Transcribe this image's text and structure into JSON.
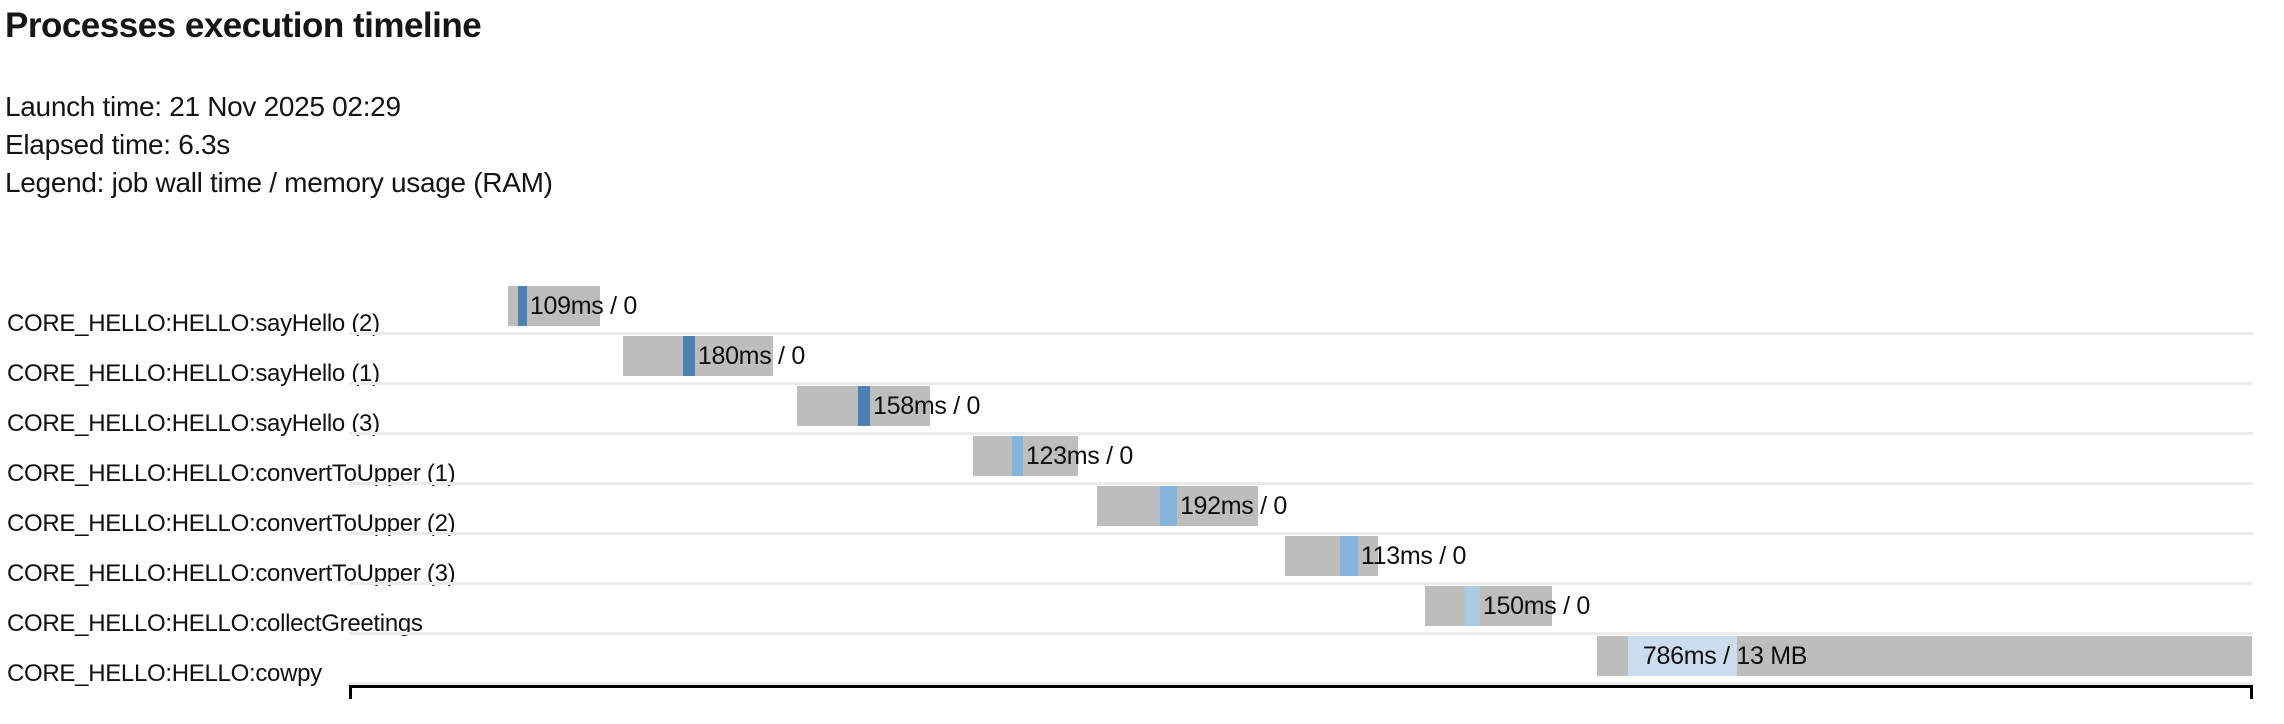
{
  "header": {
    "title": "Processes execution timeline",
    "launch_time": "Launch time: 21 Nov 2025 02:29",
    "elapsed_time": "Elapsed time: 6.3s",
    "legend": "Legend: job wall time / memory usage (RAM)"
  },
  "colors": {
    "background": "#ffffff",
    "bar_gray": "#bdbdbd",
    "run_sayHello": "#4d80b3",
    "run_convertToUpper": "#85b3d9",
    "run_collectGreetings": "#abcbe3",
    "run_cowpy": "#cadcee",
    "gridline": "#ebebeb",
    "text": "#141414",
    "box_border": "#000000"
  },
  "chart_data": {
    "type": "timeline",
    "title": "Processes execution timeline",
    "x_axis": {
      "unit": "seconds",
      "min_s": 0,
      "max_s": 6.3,
      "visible": false
    },
    "legend_note": "gray = job wall window, colored segment = run highlight, label = wall time / memory usage (RAM)",
    "rows": [
      {
        "process": "CORE_HELLO:HELLO:sayHello (2)",
        "stats": "109ms / 0",
        "wall_time": "109ms",
        "memory": "0",
        "task_start_s": 0.526,
        "task_end_s": 0.831,
        "run_start_s": 0.559,
        "run_end_s": 0.589,
        "run_color": "#4d80b3",
        "text_inside_run": false
      },
      {
        "process": "CORE_HELLO:HELLO:sayHello (1)",
        "stats": "180ms / 0",
        "wall_time": "180ms",
        "memory": "0",
        "task_start_s": 0.907,
        "task_end_s": 1.404,
        "run_start_s": 1.106,
        "run_end_s": 1.145,
        "run_color": "#4d80b3",
        "text_inside_run": false
      },
      {
        "process": "CORE_HELLO:HELLO:sayHello (3)",
        "stats": "158ms / 0",
        "wall_time": "158ms",
        "memory": "0",
        "task_start_s": 1.483,
        "task_end_s": 1.923,
        "run_start_s": 1.685,
        "run_end_s": 1.725,
        "run_color": "#4d80b3",
        "text_inside_run": false
      },
      {
        "process": "CORE_HELLO:HELLO:convertToUpper (1)",
        "stats": "123ms / 0",
        "wall_time": "123ms",
        "memory": "0",
        "task_start_s": 2.066,
        "task_end_s": 2.413,
        "run_start_s": 2.195,
        "run_end_s": 2.231,
        "run_color": "#85b3d9",
        "text_inside_run": false
      },
      {
        "process": "CORE_HELLO:HELLO:convertToUpper (2)",
        "stats": "192ms / 0",
        "wall_time": "192ms",
        "memory": "0",
        "task_start_s": 2.476,
        "task_end_s": 3.009,
        "run_start_s": 2.685,
        "run_end_s": 2.741,
        "run_color": "#85b3d9",
        "text_inside_run": false
      },
      {
        "process": "CORE_HELLO:HELLO:convertToUpper (3)",
        "stats": "113ms / 0",
        "wall_time": "113ms",
        "memory": "0",
        "task_start_s": 3.098,
        "task_end_s": 3.406,
        "run_start_s": 3.28,
        "run_end_s": 3.34,
        "run_color": "#85b3d9",
        "text_inside_run": false
      },
      {
        "process": "CORE_HELLO:HELLO:collectGreetings",
        "stats": "150ms / 0",
        "wall_time": "150ms",
        "memory": "0",
        "task_start_s": 3.562,
        "task_end_s": 3.982,
        "run_start_s": 3.694,
        "run_end_s": 3.744,
        "run_color": "#abcbe3",
        "text_inside_run": false
      },
      {
        "process": "CORE_HELLO:HELLO:cowpy",
        "stats": "786ms / 13 MB",
        "wall_time": "786ms",
        "memory": "13 MB",
        "task_start_s": 4.131,
        "task_end_s": 6.3,
        "run_start_s": 4.234,
        "run_end_s": 4.595,
        "run_color": "#cadcee",
        "text_inside_run": true
      }
    ]
  }
}
